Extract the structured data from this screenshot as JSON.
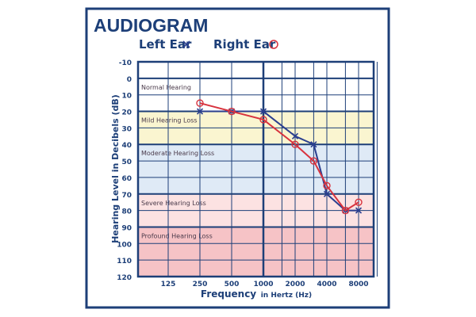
{
  "chart_data": {
    "type": "line",
    "title": "AUDIOGRAM",
    "xlabel_main": "Frequency",
    "xlabel_suffix": "in Hertz (Hz)",
    "ylabel": "Hearing Level in Decibels (dB)",
    "x_scale": "log",
    "x_ticks": [
      125,
      250,
      500,
      1000,
      2000,
      4000,
      8000
    ],
    "y_ticks": [
      -10,
      0,
      10,
      20,
      30,
      40,
      50,
      60,
      70,
      80,
      90,
      100,
      110,
      120
    ],
    "ylim": [
      -10,
      120
    ],
    "y_inverted": true,
    "grid": true,
    "legend_position": "top",
    "bands": [
      {
        "label": "Normal Hearing",
        "from": 0,
        "to": 20,
        "color": "#ffffff"
      },
      {
        "label": "Mild Hearing Loss",
        "from": 20,
        "to": 40,
        "color": "#faf5d0"
      },
      {
        "label": "Moderate Hearing Loss",
        "from": 40,
        "to": 70,
        "color": "#dfeaf6"
      },
      {
        "label": "Severe Hearing Loss",
        "from": 70,
        "to": 90,
        "color": "#fce2e2"
      },
      {
        "label": "Profound Hearing Loss",
        "from": 90,
        "to": 120,
        "color": "#f6c3c6"
      }
    ],
    "series": [
      {
        "name": "Left Ear",
        "marker": "×",
        "color": "#2b3f8f",
        "x": [
          250,
          500,
          1000,
          2000,
          3000,
          4000,
          6000,
          8000
        ],
        "y": [
          20,
          20,
          20,
          35,
          40,
          70,
          80,
          80
        ]
      },
      {
        "name": "Right Ear",
        "marker": "○",
        "color": "#d8333e",
        "x": [
          250,
          500,
          1000,
          2000,
          3000,
          4000,
          6000,
          8000
        ],
        "y": [
          15,
          20,
          25,
          40,
          50,
          65,
          80,
          75
        ]
      }
    ]
  },
  "colors": {
    "frame": "#1d3f78",
    "grid": "#1d3f78"
  }
}
